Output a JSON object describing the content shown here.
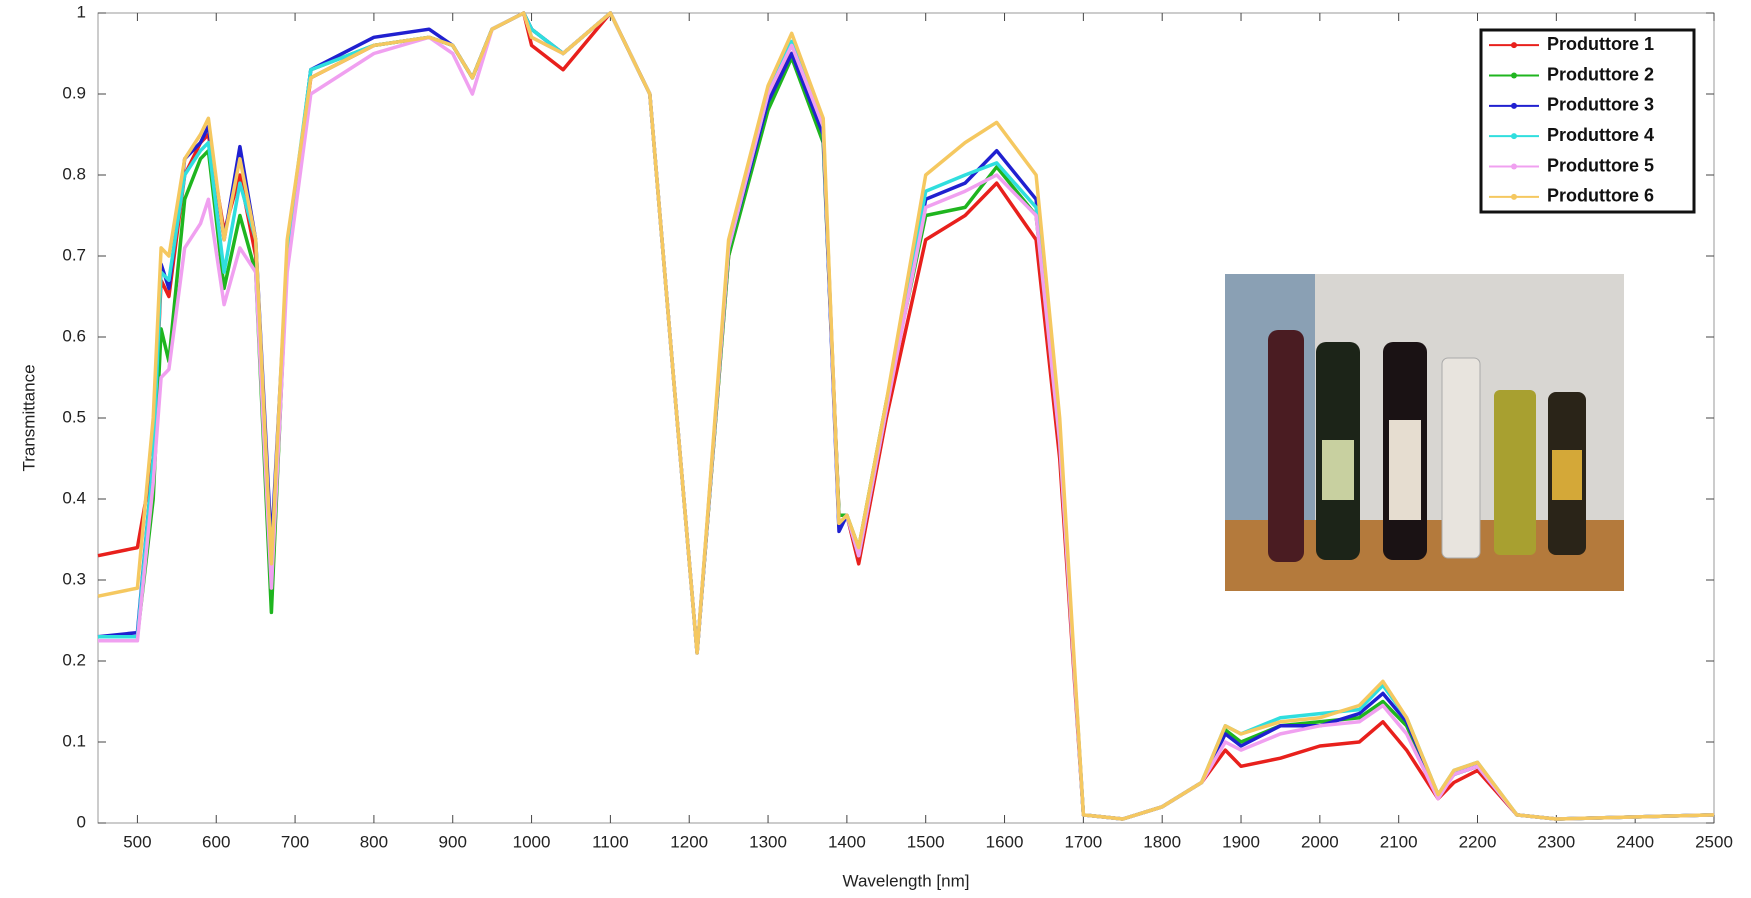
{
  "chart_data": {
    "type": "line",
    "x_label": "Wavelength [nm]",
    "y_label": "Transmittance",
    "x": [
      450,
      500,
      520,
      530,
      540,
      560,
      580,
      590,
      610,
      630,
      650,
      670,
      690,
      720,
      800,
      870,
      900,
      925,
      950,
      990,
      1000,
      1040,
      1100,
      1150,
      1180,
      1210,
      1250,
      1300,
      1330,
      1370,
      1390,
      1400,
      1415,
      1450,
      1500,
      1550,
      1590,
      1640,
      1670,
      1700,
      1750,
      1800,
      1850,
      1880,
      1900,
      1950,
      2000,
      2050,
      2080,
      2110,
      2150,
      2170,
      2200,
      2250,
      2300,
      2500
    ],
    "series": [
      {
        "name": "Produttore 1",
        "color": "#e8201c",
        "values": [
          0.33,
          0.34,
          0.45,
          0.67,
          0.65,
          0.8,
          0.84,
          0.85,
          0.73,
          0.8,
          0.7,
          0.27,
          0.7,
          0.92,
          0.96,
          0.97,
          0.96,
          0.92,
          0.98,
          1,
          0.96,
          0.93,
          1,
          0.9,
          0.55,
          0.21,
          0.7,
          0.9,
          0.95,
          0.85,
          0.38,
          0.38,
          0.32,
          0.5,
          0.72,
          0.75,
          0.79,
          0.72,
          0.45,
          0.01,
          0.005,
          0.02,
          0.05,
          0.09,
          0.07,
          0.08,
          0.095,
          0.1,
          0.125,
          0.09,
          0.03,
          0.05,
          0.065,
          0.01,
          0.005,
          0.01
        ]
      },
      {
        "name": "Produttore 2",
        "color": "#1fb51f",
        "values": [
          0.23,
          0.23,
          0.4,
          0.61,
          0.57,
          0.77,
          0.82,
          0.83,
          0.66,
          0.75,
          0.68,
          0.26,
          0.7,
          0.93,
          0.96,
          0.97,
          0.96,
          0.92,
          0.98,
          1,
          0.98,
          0.95,
          1,
          0.9,
          0.55,
          0.21,
          0.7,
          0.88,
          0.945,
          0.84,
          0.38,
          0.38,
          0.34,
          0.52,
          0.75,
          0.76,
          0.81,
          0.75,
          0.47,
          0.01,
          0.005,
          0.02,
          0.05,
          0.115,
          0.1,
          0.12,
          0.125,
          0.13,
          0.15,
          0.12,
          0.035,
          0.06,
          0.07,
          0.01,
          0.005,
          0.01
        ]
      },
      {
        "name": "Produttore 3",
        "color": "#2020d0",
        "values": [
          0.23,
          0.235,
          0.45,
          0.69,
          0.66,
          0.82,
          0.84,
          0.86,
          0.72,
          0.835,
          0.72,
          0.34,
          0.7,
          0.93,
          0.97,
          0.98,
          0.96,
          0.92,
          0.98,
          1,
          0.98,
          0.95,
          1,
          0.9,
          0.55,
          0.21,
          0.71,
          0.89,
          0.95,
          0.85,
          0.36,
          0.38,
          0.33,
          0.51,
          0.77,
          0.79,
          0.83,
          0.77,
          0.48,
          0.01,
          0.005,
          0.02,
          0.05,
          0.11,
          0.095,
          0.12,
          0.12,
          0.135,
          0.16,
          0.125,
          0.035,
          0.06,
          0.07,
          0.01,
          0.005,
          0.01
        ]
      },
      {
        "name": "Produttore 4",
        "color": "#30dede",
        "values": [
          0.23,
          0.23,
          0.45,
          0.68,
          0.67,
          0.8,
          0.83,
          0.84,
          0.68,
          0.79,
          0.72,
          0.3,
          0.71,
          0.93,
          0.96,
          0.97,
          0.96,
          0.92,
          0.98,
          1,
          0.98,
          0.95,
          1,
          0.9,
          0.55,
          0.21,
          0.71,
          0.9,
          0.965,
          0.86,
          0.37,
          0.38,
          0.33,
          0.51,
          0.78,
          0.8,
          0.815,
          0.76,
          0.48,
          0.01,
          0.005,
          0.02,
          0.05,
          0.12,
          0.11,
          0.13,
          0.135,
          0.14,
          0.17,
          0.13,
          0.035,
          0.065,
          0.075,
          0.01,
          0.005,
          0.01
        ]
      },
      {
        "name": "Produttore 5",
        "color": "#f0a0f0",
        "values": [
          0.225,
          0.225,
          0.42,
          0.55,
          0.56,
          0.71,
          0.74,
          0.77,
          0.64,
          0.71,
          0.68,
          0.29,
          0.68,
          0.9,
          0.95,
          0.97,
          0.95,
          0.9,
          0.98,
          1,
          0.97,
          0.95,
          1,
          0.9,
          0.55,
          0.21,
          0.71,
          0.9,
          0.96,
          0.86,
          0.37,
          0.38,
          0.33,
          0.51,
          0.76,
          0.78,
          0.8,
          0.75,
          0.47,
          0.01,
          0.005,
          0.02,
          0.05,
          0.1,
          0.09,
          0.11,
          0.12,
          0.125,
          0.145,
          0.11,
          0.03,
          0.06,
          0.07,
          0.01,
          0.005,
          0.01
        ]
      },
      {
        "name": "Produttore 6",
        "color": "#f5c860",
        "values": [
          0.28,
          0.29,
          0.5,
          0.71,
          0.7,
          0.82,
          0.85,
          0.87,
          0.72,
          0.82,
          0.72,
          0.32,
          0.72,
          0.92,
          0.96,
          0.97,
          0.96,
          0.92,
          0.98,
          1,
          0.97,
          0.95,
          1,
          0.9,
          0.55,
          0.21,
          0.72,
          0.91,
          0.975,
          0.87,
          0.37,
          0.38,
          0.34,
          0.52,
          0.8,
          0.84,
          0.865,
          0.8,
          0.5,
          0.01,
          0.005,
          0.02,
          0.05,
          0.12,
          0.11,
          0.125,
          0.13,
          0.145,
          0.175,
          0.13,
          0.035,
          0.065,
          0.075,
          0.01,
          0.005,
          0.01
        ]
      }
    ],
    "xlim": [
      450,
      2500
    ],
    "ylim": [
      0,
      1
    ],
    "xticks": [
      500,
      600,
      700,
      800,
      900,
      1000,
      1100,
      1200,
      1300,
      1400,
      1500,
      1600,
      1700,
      1800,
      1900,
      2000,
      2100,
      2200,
      2300,
      2400,
      2500
    ],
    "yticks": [
      0,
      0.1,
      0.2,
      0.3,
      0.4,
      0.5,
      0.6,
      0.7,
      0.8,
      0.9,
      1
    ],
    "grid": false,
    "legend": "upper right"
  }
}
